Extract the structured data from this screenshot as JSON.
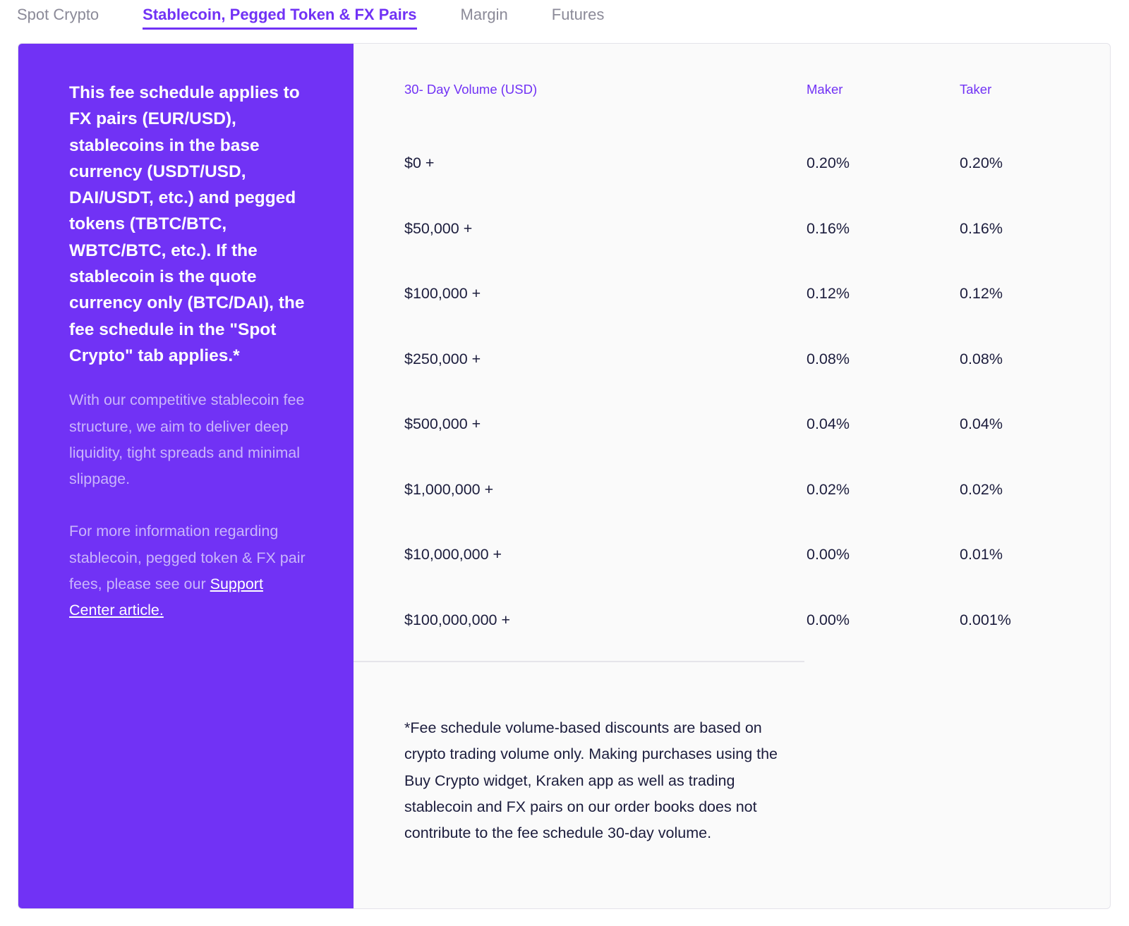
{
  "tabs": [
    {
      "label": "Spot Crypto",
      "active": false
    },
    {
      "label": "Stablecoin, Pegged Token & FX Pairs",
      "active": true
    },
    {
      "label": "Margin",
      "active": false
    },
    {
      "label": "Futures",
      "active": false
    }
  ],
  "left_panel": {
    "intro": "This fee schedule applies to FX pairs (EUR/USD), stablecoins in the base currency (USDT/USD, DAI/USDT, etc.) and pegged tokens (TBTC/BTC, WBTC/BTC, etc.). If the stablecoin is the quote currency only (BTC/DAI), the fee schedule in the \"Spot Crypto\" tab applies.*",
    "paragraph1": "With our competitive stablecoin fee structure, we aim to deliver deep liquidity, tight spreads and minimal slippage.",
    "paragraph2": "For more information regarding stablecoin, pegged token & FX pair fees, please see our",
    "link_text": "Support Center article."
  },
  "table": {
    "headers": {
      "volume": "30- Day Volume (USD)",
      "maker": "Maker",
      "taker": "Taker"
    },
    "rows": [
      {
        "volume": "$0 +",
        "maker": "0.20%",
        "taker": "0.20%"
      },
      {
        "volume": "$50,000 +",
        "maker": "0.16%",
        "taker": "0.16%"
      },
      {
        "volume": "$100,000 +",
        "maker": "0.12%",
        "taker": "0.12%"
      },
      {
        "volume": "$250,000 +",
        "maker": "0.08%",
        "taker": "0.08%"
      },
      {
        "volume": "$500,000 +",
        "maker": "0.04%",
        "taker": "0.04%"
      },
      {
        "volume": "$1,000,000 +",
        "maker": "0.02%",
        "taker": "0.02%"
      },
      {
        "volume": "$10,000,000 +",
        "maker": "0.00%",
        "taker": "0.01%"
      },
      {
        "volume": "$100,000,000 +",
        "maker": "0.00%",
        "taker": "0.001%"
      }
    ]
  },
  "footnote": "*Fee schedule volume-based discounts are based on crypto trading volume only. Making purchases using the Buy Crypto widget, Kraken app as well as trading stablecoin and FX pairs on our order books does not contribute to the fee schedule 30-day volume.",
  "colors": {
    "accent": "#7132f5",
    "panel_muted_text": "#c9b5fb",
    "inactive_tab": "#8b8a98",
    "text": "#1c1d3d"
  }
}
